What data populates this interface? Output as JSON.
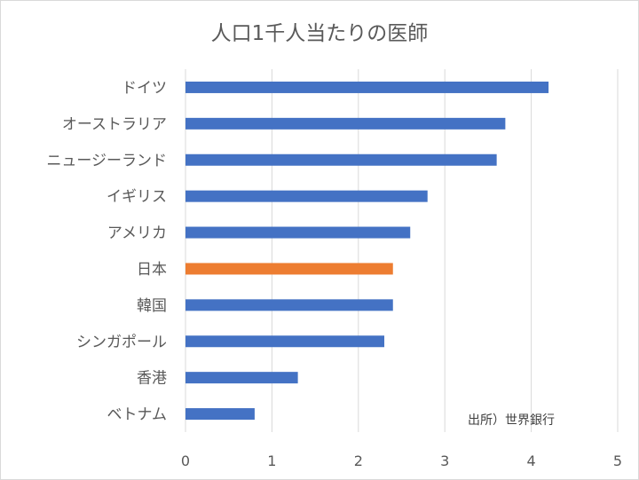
{
  "chart_data": {
    "type": "bar",
    "orientation": "horizontal",
    "title": "人口1千人当たりの医師",
    "categories": [
      "ドイツ",
      "オーストラリア",
      "ニュージーランド",
      "イギリス",
      "アメリカ",
      "日本",
      "韓国",
      "シンガポール",
      "香港",
      "ベトナム"
    ],
    "values": [
      4.2,
      3.7,
      3.6,
      2.8,
      2.6,
      2.4,
      2.4,
      2.3,
      1.3,
      0.8
    ],
    "highlight": "日本",
    "xlim": [
      0,
      5
    ],
    "xticks": [
      "0",
      "1",
      "2",
      "3",
      "4",
      "5"
    ],
    "grid": true,
    "colors": {
      "default": "#4472C4",
      "highlight": "#ED7D31"
    },
    "annotation": "出所）世界銀行"
  }
}
